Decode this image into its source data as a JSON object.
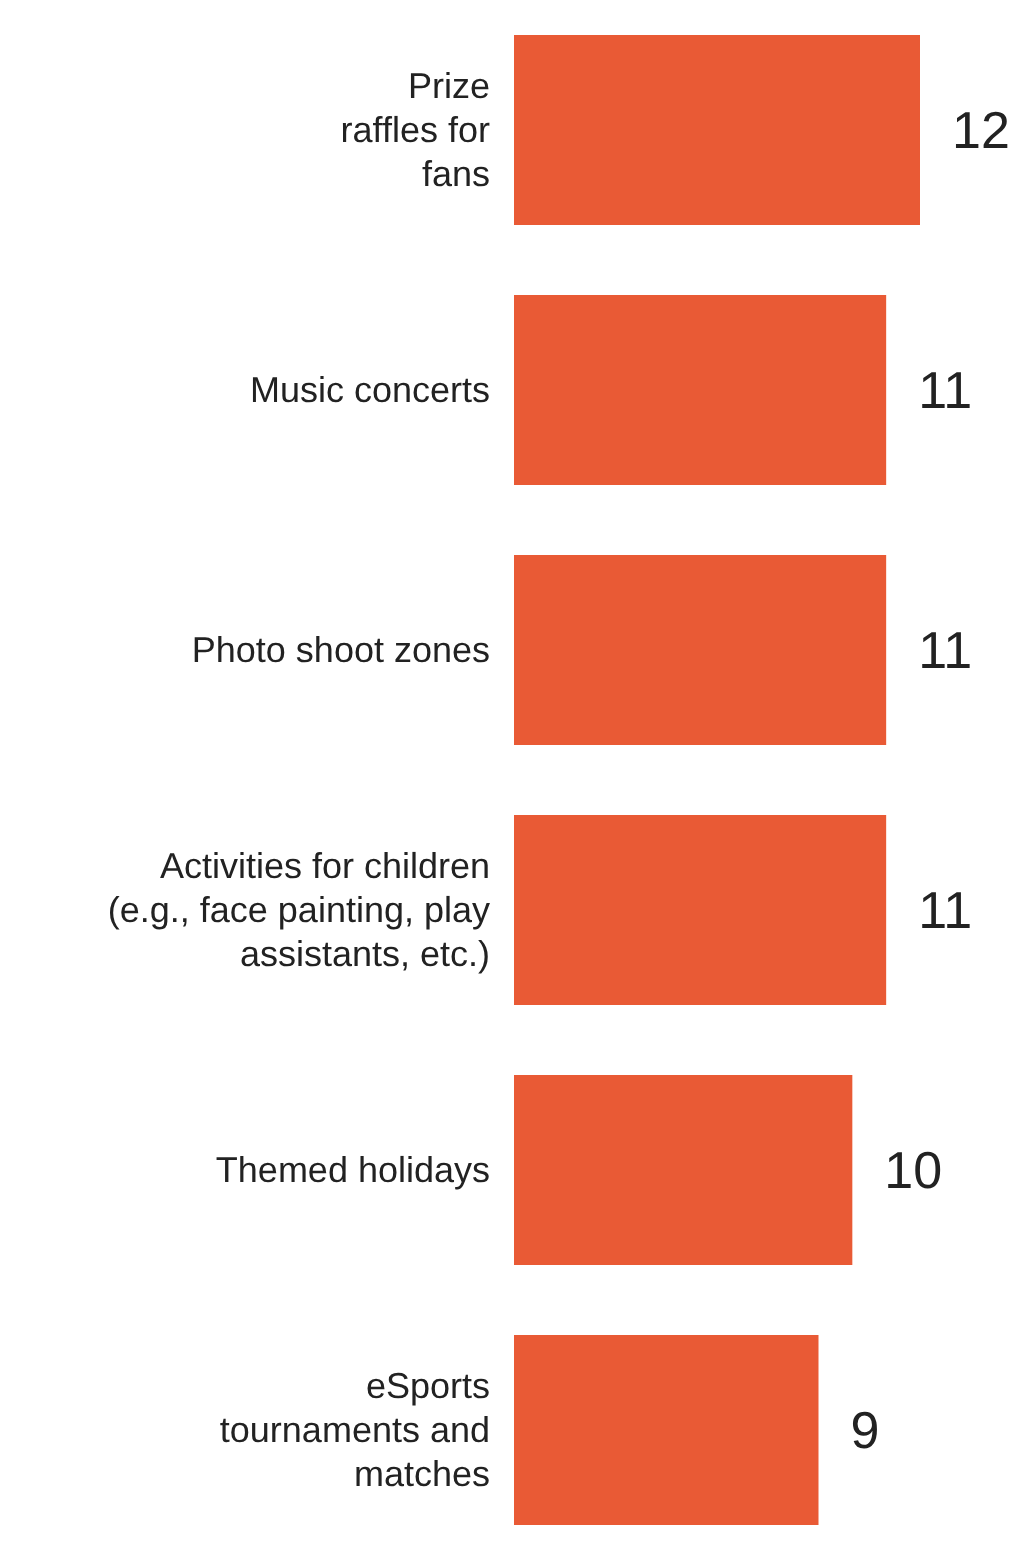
{
  "chart_data": {
    "type": "bar",
    "orientation": "horizontal",
    "categories": [
      "Prize\nraffles for\nfans",
      "Music concerts",
      "Photo shoot zones",
      "Activities for children\n(e.g., face painting, play\nassistants, etc.)",
      "Themed holidays",
      "eSports\ntournaments and\nmatches"
    ],
    "values": [
      12,
      11,
      11,
      11,
      10,
      9
    ],
    "color": "#e95a35",
    "data_labels": true
  }
}
